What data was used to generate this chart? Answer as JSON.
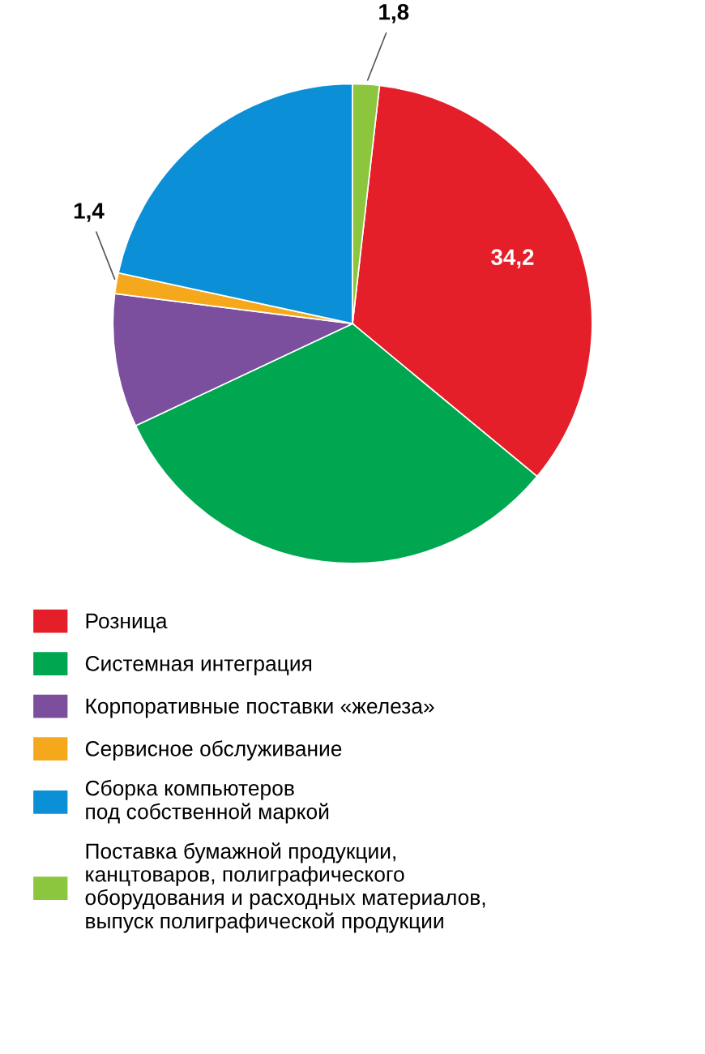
{
  "chart_data": {
    "type": "pie",
    "categories": [
      "Розница",
      "Системная интеграция",
      "Корпоративные поставки «железа»",
      "Сервисное обслуживание",
      "Сборка компьютеров\nпод собственной маркой",
      "Поставка бумажной продукции,\nканцтоваров, полиграфического\nоборудования и расходных материалов,\nвыпуск полиграфической продукции"
    ],
    "values": [
      34.2,
      32,
      9,
      1.4,
      21.6,
      1.8
    ],
    "colors": [
      "#e41f2a",
      "#00a650",
      "#7b4f9e",
      "#f6a81c",
      "#0b8fd6",
      "#8cc63e"
    ],
    "value_labels": [
      "34,2",
      null,
      null,
      "1,4",
      null,
      "1,8"
    ],
    "legend": "bottom"
  }
}
